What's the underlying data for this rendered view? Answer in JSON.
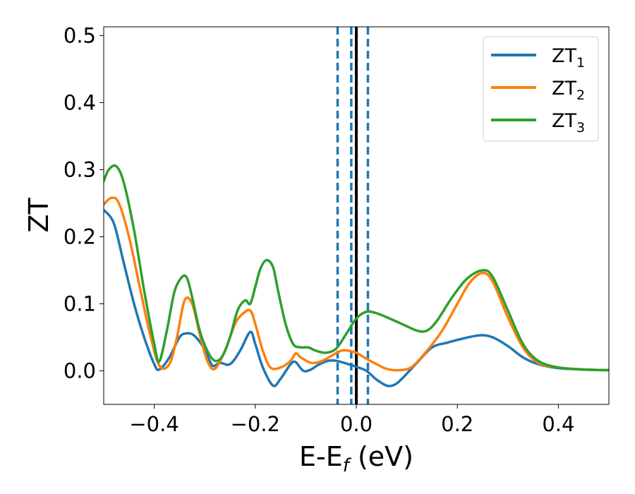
{
  "chart_data": {
    "type": "line",
    "xlabel": "E-E$_f$ (eV)",
    "xlabel_parts": {
      "main": "E-E",
      "sub": "f",
      "tail": " (eV)"
    },
    "ylabel": "ZT",
    "xlim": [
      -0.5,
      0.5
    ],
    "ylim": [
      -0.05,
      0.513
    ],
    "xticks": [
      -0.4,
      -0.2,
      0.0,
      0.2,
      0.4
    ],
    "xtick_labels": [
      "−0.4",
      "−0.2",
      "0.0",
      "0.2",
      "0.4"
    ],
    "yticks": [
      0.0,
      0.1,
      0.2,
      0.3,
      0.4,
      0.5
    ],
    "ytick_labels": [
      "0.0",
      "0.1",
      "0.2",
      "0.3",
      "0.4",
      "0.5"
    ],
    "grid": false,
    "legend_position": "top-right",
    "series": [
      {
        "name": "ZT1",
        "label_main": "ZT",
        "label_sub": "1",
        "color": "#1f77b4",
        "x": [
          -0.5,
          -0.48,
          -0.46,
          -0.44,
          -0.42,
          -0.4,
          -0.39,
          -0.37,
          -0.35,
          -0.335,
          -0.32,
          -0.3,
          -0.285,
          -0.27,
          -0.25,
          -0.23,
          -0.21,
          -0.2,
          -0.185,
          -0.165,
          -0.15,
          -0.13,
          -0.12,
          -0.105,
          -0.09,
          -0.075,
          -0.055,
          -0.04,
          -0.02,
          0.0,
          0.02,
          0.04,
          0.06,
          0.075,
          0.09,
          0.12,
          0.15,
          0.18,
          0.21,
          0.245,
          0.27,
          0.3,
          0.33,
          0.36,
          0.4,
          0.45,
          0.5
        ],
        "y": [
          0.24,
          0.22,
          0.16,
          0.1,
          0.05,
          0.01,
          0.002,
          0.02,
          0.05,
          0.056,
          0.052,
          0.032,
          0.008,
          0.012,
          0.01,
          0.03,
          0.058,
          0.04,
          0.005,
          -0.022,
          -0.012,
          0.01,
          0.013,
          0.0,
          0.002,
          0.009,
          0.015,
          0.015,
          0.011,
          0.006,
          0.0,
          -0.013,
          -0.022,
          -0.021,
          -0.012,
          0.012,
          0.035,
          0.042,
          0.048,
          0.053,
          0.05,
          0.037,
          0.02,
          0.01,
          0.004,
          0.002,
          0.001
        ]
      },
      {
        "name": "ZT2",
        "label_main": "ZT",
        "label_sub": "2",
        "color": "#ff7f0e",
        "x": [
          -0.5,
          -0.485,
          -0.47,
          -0.45,
          -0.43,
          -0.41,
          -0.39,
          -0.37,
          -0.355,
          -0.34,
          -0.325,
          -0.31,
          -0.295,
          -0.28,
          -0.26,
          -0.24,
          -0.225,
          -0.21,
          -0.2,
          -0.185,
          -0.17,
          -0.15,
          -0.13,
          -0.12,
          -0.11,
          -0.09,
          -0.07,
          -0.05,
          -0.03,
          -0.015,
          0.0,
          0.02,
          0.04,
          0.06,
          0.085,
          0.11,
          0.14,
          0.17,
          0.2,
          0.225,
          0.25,
          0.27,
          0.3,
          0.33,
          0.36,
          0.4,
          0.45,
          0.5
        ],
        "y": [
          0.248,
          0.258,
          0.25,
          0.2,
          0.13,
          0.06,
          0.008,
          0.01,
          0.05,
          0.105,
          0.1,
          0.055,
          0.015,
          0.003,
          0.03,
          0.07,
          0.085,
          0.09,
          0.07,
          0.03,
          0.005,
          0.005,
          0.015,
          0.026,
          0.02,
          0.012,
          0.014,
          0.022,
          0.03,
          0.03,
          0.027,
          0.018,
          0.01,
          0.003,
          0.001,
          0.006,
          0.03,
          0.06,
          0.1,
          0.132,
          0.146,
          0.133,
          0.08,
          0.035,
          0.012,
          0.005,
          0.002,
          0.001
        ]
      },
      {
        "name": "ZT3",
        "label_main": "ZT",
        "label_sub": "3",
        "color": "#2ca02c",
        "x": [
          -0.5,
          -0.49,
          -0.475,
          -0.46,
          -0.44,
          -0.42,
          -0.4,
          -0.39,
          -0.375,
          -0.36,
          -0.345,
          -0.335,
          -0.325,
          -0.31,
          -0.295,
          -0.28,
          -0.265,
          -0.25,
          -0.235,
          -0.22,
          -0.21,
          -0.2,
          -0.19,
          -0.178,
          -0.165,
          -0.155,
          -0.14,
          -0.125,
          -0.11,
          -0.095,
          -0.08,
          -0.06,
          -0.04,
          -0.02,
          0.0,
          0.02,
          0.04,
          0.06,
          0.09,
          0.12,
          0.14,
          0.16,
          0.19,
          0.22,
          0.25,
          0.27,
          0.3,
          0.33,
          0.36,
          0.4,
          0.45,
          0.5
        ],
        "y": [
          0.283,
          0.3,
          0.305,
          0.28,
          0.21,
          0.12,
          0.04,
          0.014,
          0.06,
          0.118,
          0.14,
          0.138,
          0.11,
          0.06,
          0.03,
          0.015,
          0.022,
          0.05,
          0.09,
          0.105,
          0.1,
          0.125,
          0.152,
          0.165,
          0.155,
          0.12,
          0.07,
          0.04,
          0.035,
          0.035,
          0.03,
          0.027,
          0.033,
          0.055,
          0.078,
          0.088,
          0.086,
          0.08,
          0.07,
          0.06,
          0.06,
          0.075,
          0.11,
          0.138,
          0.15,
          0.14,
          0.09,
          0.04,
          0.015,
          0.005,
          0.002,
          0.001
        ]
      }
    ],
    "vertical_lines": [
      {
        "x": -0.037,
        "style": "dashed",
        "color": "#1f77b4"
      },
      {
        "x": -0.01,
        "style": "dashed",
        "color": "#1f77b4"
      },
      {
        "x": 0.0,
        "style": "solid",
        "color": "#000000"
      },
      {
        "x": 0.023,
        "style": "dashed",
        "color": "#1f77b4"
      }
    ]
  }
}
